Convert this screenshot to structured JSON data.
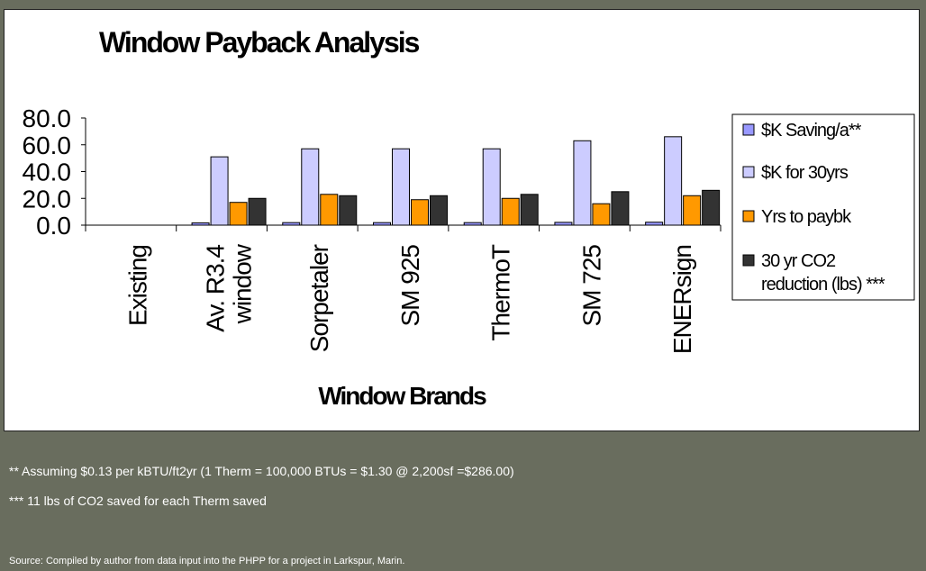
{
  "footnotes": {
    "note1": "** Assuming $0.13 per kBTU/ft2yr (1 Therm = 100,000 BTUs = $1.30 @ 2,200sf =$286.00)",
    "note2": "*** 11 lbs of CO2 saved for each Therm saved",
    "source": "Source: Compiled by author from data input into the PHPP for a project in Larkspur, Marin."
  },
  "chart_data": {
    "type": "bar",
    "title": "Window Payback Analysis",
    "xlabel": "Window Brands",
    "ylabel": "",
    "ylim": [
      0,
      80
    ],
    "yticks": [
      "80.0",
      "60.0",
      "40.0",
      "20.0",
      "0.0"
    ],
    "grid": false,
    "legend_position": "right",
    "categories": [
      [
        "Existing"
      ],
      [
        "Av. R3.4",
        "window"
      ],
      [
        "Sorpetaler"
      ],
      [
        "SM 925"
      ],
      [
        "ThermoT"
      ],
      [
        "SM 725"
      ],
      [
        "ENERsign"
      ]
    ],
    "series": [
      {
        "name": "$K Saving/a**",
        "color": "#9999ff",
        "values": [
          0,
          1.7,
          1.9,
          1.9,
          1.9,
          2.1,
          2.2
        ]
      },
      {
        "name": "$K for 30yrs",
        "color": "#ccccff",
        "values": [
          0,
          51,
          57,
          57,
          57,
          63,
          66
        ]
      },
      {
        "name": "Yrs to paybk",
        "color": "#ff9900",
        "values": [
          0,
          17,
          23,
          19,
          20,
          16,
          22
        ]
      },
      {
        "name": "30 yr CO2 reduction (lbs) ***",
        "legend_lines": [
          "30 yr CO2",
          "reduction (lbs) ***"
        ],
        "color": "#333333",
        "values": [
          0,
          20,
          22,
          22,
          23,
          25,
          26
        ]
      }
    ]
  }
}
